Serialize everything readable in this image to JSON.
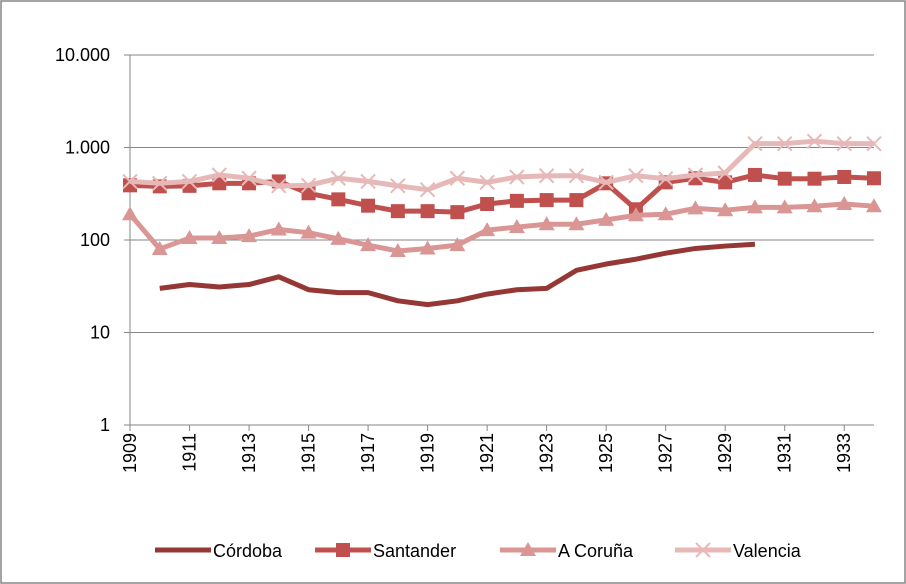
{
  "chart_data": {
    "type": "line",
    "x": [
      1909,
      1910,
      1911,
      1912,
      1913,
      1914,
      1915,
      1916,
      1917,
      1918,
      1919,
      1920,
      1921,
      1922,
      1923,
      1924,
      1925,
      1926,
      1927,
      1928,
      1929,
      1930,
      1931,
      1932,
      1933,
      1934
    ],
    "xlim": [
      1909,
      1934
    ],
    "xticks": [
      1909,
      1911,
      1913,
      1915,
      1917,
      1919,
      1921,
      1923,
      1925,
      1927,
      1929,
      1931,
      1933
    ],
    "ylim": [
      1,
      10000
    ],
    "log_scale": true,
    "yticks": [
      1,
      10,
      100,
      {
        "value": 1000,
        "label": "1.000"
      },
      {
        "value": 10000,
        "label": "10.000"
      }
    ],
    "grid": true,
    "legend": "bottom",
    "series": [
      {
        "name": "Córdoba",
        "color": "#953735",
        "marker": "none",
        "values": [
          null,
          30,
          33,
          31,
          33,
          40,
          29,
          27,
          27,
          22,
          20,
          22,
          26,
          29,
          30,
          47,
          55,
          62,
          72,
          81,
          86,
          90,
          null,
          null,
          null,
          null
        ]
      },
      {
        "name": "Santander",
        "color": "#c0504d",
        "marker": "square",
        "values": [
          390,
          380,
          385,
          410,
          410,
          430,
          320,
          275,
          235,
          205,
          205,
          200,
          245,
          265,
          270,
          270,
          410,
          215,
          420,
          465,
          420,
          505,
          460,
          460,
          480,
          465
        ]
      },
      {
        "name": "A Coruña",
        "color": "#d99694",
        "marker": "triangle",
        "values": [
          190,
          80,
          105,
          105,
          110,
          130,
          120,
          103,
          88,
          76,
          81,
          88,
          128,
          138,
          148,
          148,
          165,
          185,
          190,
          220,
          210,
          225,
          225,
          232,
          245,
          232
        ]
      },
      {
        "name": "Valencia",
        "color": "#e6b9b8",
        "marker": "x",
        "values": [
          430,
          410,
          430,
          505,
          465,
          385,
          390,
          465,
          430,
          385,
          350,
          465,
          420,
          480,
          495,
          495,
          420,
          495,
          460,
          505,
          530,
          1100,
          1100,
          1170,
          1100,
          1100
        ]
      }
    ]
  }
}
